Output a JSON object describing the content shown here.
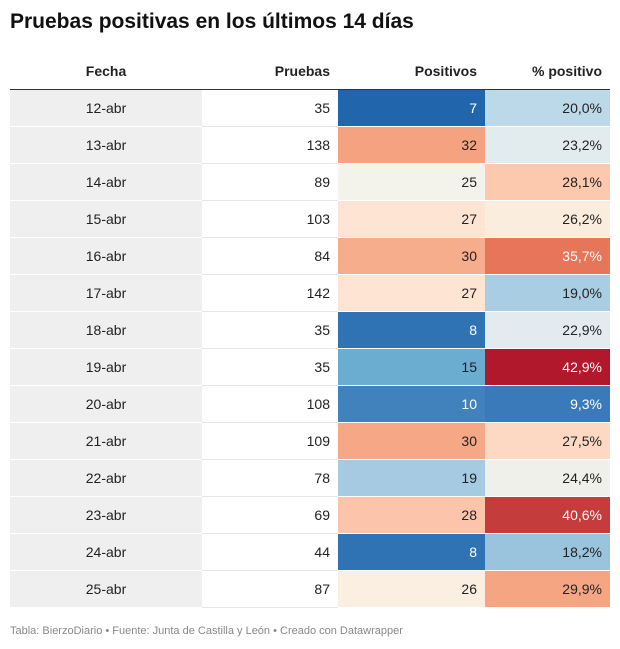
{
  "title": "Pruebas positivas en los últimos 14 días",
  "footer": "Tabla: BierzoDiario • Fuente: Junta de Castilla y León • Creado con Datawrapper",
  "chart_data": {
    "type": "table",
    "columns": [
      "Fecha",
      "Pruebas",
      "Positivos",
      "% positivo"
    ],
    "rows": [
      {
        "fecha": "12-abr",
        "pruebas": "35",
        "positivos": "7",
        "pct": "20,0%",
        "pos_color": "#2166ac",
        "pct_color": "#bcd9ea"
      },
      {
        "fecha": "13-abr",
        "pruebas": "138",
        "positivos": "32",
        "pct": "23,2%",
        "pos_color": "#f4a27f",
        "pct_color": "#e2ebee"
      },
      {
        "fecha": "14-abr",
        "pruebas": "89",
        "positivos": "25",
        "pct": "28,1%",
        "pos_color": "#f3f3ec",
        "pct_color": "#fcc8ae"
      },
      {
        "fecha": "15-abr",
        "pruebas": "103",
        "positivos": "27",
        "pct": "26,2%",
        "pos_color": "#fde4d3",
        "pct_color": "#fbeddd"
      },
      {
        "fecha": "16-abr",
        "pruebas": "84",
        "positivos": "30",
        "pct": "35,7%",
        "pos_color": "#f6ad8c",
        "pct_color": "#e67559"
      },
      {
        "fecha": "17-abr",
        "pruebas": "142",
        "positivos": "27",
        "pct": "19,0%",
        "pos_color": "#fde4d3",
        "pct_color": "#a9cee4"
      },
      {
        "fecha": "18-abr",
        "pruebas": "35",
        "positivos": "8",
        "pct": "22,9%",
        "pos_color": "#2f73b5",
        "pct_color": "#e3ebee"
      },
      {
        "fecha": "19-abr",
        "pruebas": "35",
        "positivos": "15",
        "pct": "42,9%",
        "pos_color": "#6bacd1",
        "pct_color": "#b2182b"
      },
      {
        "fecha": "20-abr",
        "pruebas": "108",
        "positivos": "10",
        "pct": "9,3%",
        "pos_color": "#4182bd",
        "pct_color": "#3a7abb"
      },
      {
        "fecha": "21-abr",
        "pruebas": "109",
        "positivos": "30",
        "pct": "27,5%",
        "pos_color": "#f6a785",
        "pct_color": "#fdd9c4"
      },
      {
        "fecha": "22-abr",
        "pruebas": "78",
        "positivos": "19",
        "pct": "24,4%",
        "pos_color": "#a6cae1",
        "pct_color": "#eff0ea"
      },
      {
        "fecha": "23-abr",
        "pruebas": "69",
        "positivos": "28",
        "pct": "40,6%",
        "pos_color": "#fcc5ab",
        "pct_color": "#c43c3c"
      },
      {
        "fecha": "24-abr",
        "pruebas": "44",
        "positivos": "8",
        "pct": "18,2%",
        "pos_color": "#2f73b5",
        "pct_color": "#9ac4de"
      },
      {
        "fecha": "25-abr",
        "pruebas": "87",
        "positivos": "26",
        "pct": "29,9%",
        "pos_color": "#fbefe1",
        "pct_color": "#f6a583"
      }
    ]
  }
}
